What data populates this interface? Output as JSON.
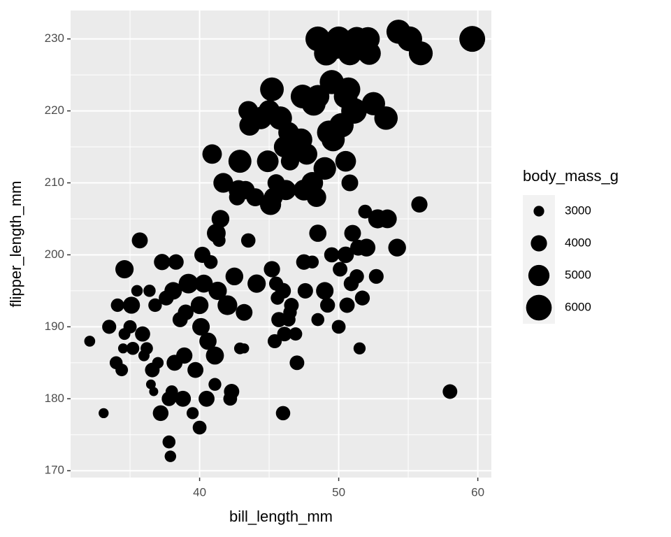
{
  "chart_data": {
    "type": "scatter",
    "x_label": "bill_length_mm",
    "y_label": "flipper_length_mm",
    "size_label": "body_mass_g",
    "x": [
      32.1,
      33.1,
      33.5,
      34.0,
      34.1,
      34.4,
      34.5,
      34.6,
      34.6,
      35.0,
      35.1,
      35.2,
      35.5,
      35.7,
      35.9,
      36.0,
      36.2,
      36.4,
      36.5,
      36.6,
      36.7,
      36.8,
      37.0,
      37.2,
      37.3,
      37.6,
      37.8,
      37.8,
      37.9,
      38.0,
      38.1,
      38.3,
      38.6,
      38.8,
      38.9,
      39.2,
      39.5,
      39.7,
      40.0,
      40.2,
      40.3,
      40.5,
      40.6,
      40.8,
      41.1,
      41.1,
      41.4,
      41.3,
      42.0,
      42.2,
      42.3,
      42.5,
      42.9,
      43.2,
      43.2,
      43.5,
      44.1,
      46.0,
      40.1,
      39.0,
      41.5,
      41.2,
      40.0,
      38.2,
      45.2,
      45.5,
      45.4,
      45.6,
      45.7,
      46.0,
      46.1,
      46.4,
      46.5,
      46.6,
      46.9,
      47.0,
      47.5,
      47.6,
      48.1,
      48.5,
      48.5,
      49.0,
      49.2,
      49.5,
      50.0,
      50.1,
      50.5,
      50.6,
      50.8,
      50.9,
      51.0,
      51.3,
      51.4,
      51.5,
      51.7,
      51.9,
      52.0,
      52.7,
      52.8,
      53.5,
      54.2,
      55.8,
      58.0,
      40.9,
      41.7,
      42.7,
      42.8,
      42.9,
      43.3,
      43.5,
      43.6,
      44.0,
      44.4,
      44.9,
      45.0,
      45.1,
      45.2,
      45.3,
      45.5,
      45.8,
      46.1,
      46.2,
      46.4,
      46.5,
      46.8,
      47.3,
      47.4,
      47.5,
      47.7,
      48.1,
      48.2,
      48.4,
      48.5,
      49.0,
      49.1,
      49.3,
      49.5,
      49.6,
      49.8,
      50.0,
      50.2,
      50.5,
      50.7,
      50.8,
      51.1,
      52.1,
      52.2,
      52.5,
      53.4,
      54.3,
      55.1,
      55.9,
      59.6,
      48.5,
      50.5,
      51.3
    ],
    "values": [
      188,
      178,
      190,
      185,
      193,
      184,
      187,
      189,
      198,
      190,
      193,
      187,
      195,
      202,
      189,
      186,
      187,
      195,
      182,
      184,
      181,
      193,
      185,
      178,
      199,
      194,
      174,
      180,
      172,
      181,
      195,
      199,
      191,
      180,
      186,
      196,
      178,
      184,
      176,
      200,
      196,
      180,
      188,
      199,
      186,
      182,
      202,
      195,
      193,
      180,
      181,
      197,
      187,
      192,
      187,
      202,
      196,
      178,
      190,
      192,
      205,
      203,
      193,
      185,
      198,
      196,
      188,
      194,
      191,
      195,
      189,
      191,
      192,
      193,
      189,
      185,
      199,
      195,
      199,
      191,
      203,
      195,
      193,
      200,
      190,
      198,
      200,
      193,
      210,
      196,
      203,
      197,
      201,
      187,
      194,
      206,
      201,
      197,
      205,
      205,
      201,
      207,
      181,
      214,
      210,
      208,
      209,
      213,
      209,
      220,
      218,
      208,
      219,
      213,
      220,
      207,
      223,
      208,
      210,
      219,
      215,
      209,
      217,
      213,
      215,
      216,
      222,
      209,
      214,
      210,
      221,
      208,
      222,
      212,
      228,
      217,
      224,
      216,
      229,
      230,
      218,
      222,
      223,
      228,
      220,
      230,
      228,
      221,
      219,
      231,
      230,
      228,
      230,
      230,
      213,
      230
    ],
    "sizes": [
      3050,
      2900,
      3600,
      3400,
      3475,
      3325,
      2900,
      3200,
      4400,
      3450,
      4150,
      3400,
      3150,
      3950,
      3800,
      3100,
      3300,
      3275,
      2850,
      3700,
      2750,
      3500,
      3150,
      3900,
      4000,
      3750,
      3400,
      3700,
      3150,
      3300,
      4250,
      3850,
      3800,
      3950,
      4000,
      4675,
      3250,
      3950,
      3550,
      3975,
      4350,
      3950,
      4200,
      3550,
      4350,
      3375,
      3400,
      4400,
      4700,
      3550,
      3825,
      4300,
      3175,
      4100,
      2900,
      3650,
      4400,
      3650,
      4250,
      3900,
      4300,
      4500,
      4300,
      3950,
      4000,
      3600,
      3600,
      3500,
      3800,
      3900,
      3700,
      3550,
      3500,
      3700,
      3450,
      3700,
      3875,
      3850,
      3400,
      3400,
      4200,
      4250,
      3750,
      3800,
      3550,
      3700,
      4050,
      3825,
      4100,
      3775,
      4100,
      3650,
      3950,
      3250,
      3750,
      3550,
      4300,
      3725,
      4550,
      4500,
      4300,
      4000,
      3700,
      4650,
      4700,
      4000,
      4700,
      5400,
      4400,
      4700,
      4900,
      4350,
      5250,
      5100,
      5050,
      5000,
      5550,
      4500,
      4200,
      5500,
      5000,
      4800,
      4900,
      4400,
      5000,
      5250,
      5550,
      4950,
      5000,
      5100,
      5600,
      4650,
      5400,
      5300,
      5700,
      5600,
      5650,
      5450,
      5950,
      5800,
      5700,
      5550,
      5550,
      5600,
      6000,
      5550,
      5400,
      5450,
      5500,
      5650,
      5850,
      5600,
      6050,
      5800,
      4900,
      5600
    ],
    "color": "#000000",
    "size_breaks": [
      3000,
      4000,
      5000,
      6000
    ],
    "xlim": [
      30.725,
      60.975
    ],
    "xticks": [
      40,
      50,
      60
    ],
    "ylim": [
      169.05,
      233.95
    ],
    "yticks": [
      170,
      180,
      190,
      200,
      210,
      220,
      230
    ],
    "grid": true
  }
}
